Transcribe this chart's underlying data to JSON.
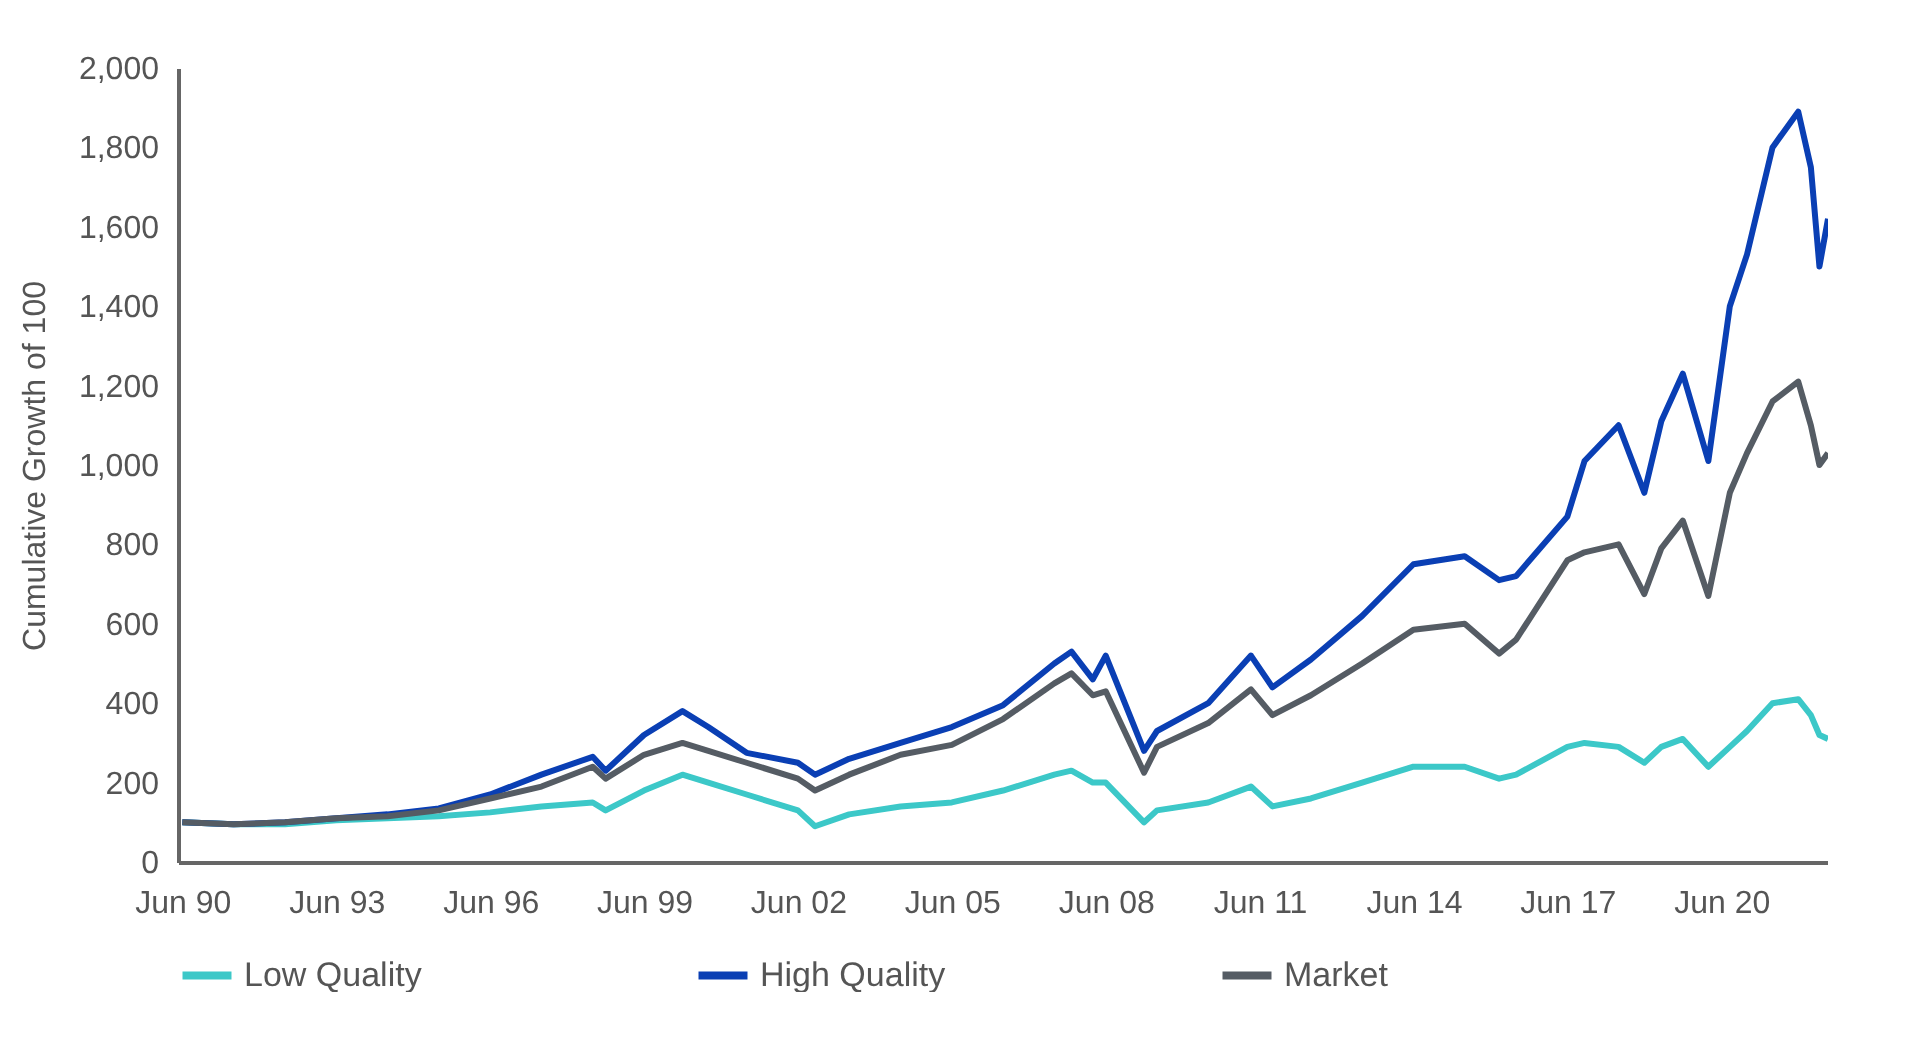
{
  "chart_data": {
    "type": "line",
    "ylabel": "Cumulative Growth of 100",
    "x": [
      "1990-06",
      "1991-06",
      "1992-06",
      "1993-06",
      "1994-06",
      "1995-06",
      "1996-06",
      "1997-06",
      "1998-06",
      "1998-09",
      "1999-06",
      "2000-03",
      "2000-09",
      "2001-06",
      "2002-06",
      "2002-10",
      "2003-06",
      "2004-06",
      "2005-06",
      "2006-06",
      "2007-06",
      "2007-10",
      "2008-03",
      "2008-06",
      "2009-03",
      "2009-06",
      "2010-06",
      "2011-04",
      "2011-09",
      "2012-06",
      "2013-06",
      "2014-06",
      "2015-06",
      "2016-02",
      "2016-06",
      "2017-06",
      "2017-10",
      "2018-06",
      "2018-12",
      "2019-04",
      "2019-09",
      "2020-03",
      "2020-08",
      "2020-12",
      "2021-06",
      "2021-12",
      "2022-03",
      "2022-05",
      "2022-07"
    ],
    "series": [
      {
        "name": "Low Quality",
        "color": "#3cc8c8",
        "values": [
          100,
          95,
          95,
          105,
          110,
          115,
          125,
          140,
          150,
          130,
          180,
          220,
          200,
          170,
          130,
          90,
          120,
          140,
          150,
          180,
          220,
          230,
          200,
          200,
          100,
          130,
          150,
          190,
          140,
          160,
          200,
          240,
          240,
          210,
          220,
          290,
          300,
          290,
          250,
          290,
          310,
          240,
          290,
          330,
          400,
          410,
          370,
          320,
          310
        ]
      },
      {
        "name": "High Quality",
        "color": "#0a3fb4",
        "values": [
          100,
          95,
          100,
          110,
          120,
          135,
          170,
          220,
          265,
          230,
          320,
          380,
          340,
          275,
          250,
          220,
          260,
          300,
          340,
          395,
          500,
          530,
          460,
          520,
          280,
          330,
          400,
          520,
          440,
          510,
          620,
          750,
          770,
          710,
          720,
          870,
          1010,
          1100,
          930,
          1110,
          1230,
          1010,
          1400,
          1530,
          1800,
          1890,
          1750,
          1500,
          1620
        ]
      },
      {
        "name": "Market",
        "color": "#555c64",
        "values": [
          100,
          95,
          100,
          110,
          115,
          130,
          160,
          190,
          240,
          210,
          270,
          300,
          280,
          250,
          210,
          180,
          220,
          270,
          295,
          360,
          450,
          475,
          420,
          430,
          225,
          290,
          350,
          435,
          370,
          420,
          500,
          585,
          600,
          525,
          560,
          760,
          780,
          800,
          675,
          790,
          860,
          670,
          930,
          1030,
          1160,
          1210,
          1100,
          1000,
          1030
        ]
      }
    ],
    "xlim": [
      "1990-05",
      "2022-07"
    ],
    "xticks": [
      {
        "value": "1990-06",
        "label": "Jun 90"
      },
      {
        "value": "1993-06",
        "label": "Jun 93"
      },
      {
        "value": "1996-06",
        "label": "Jun 96"
      },
      {
        "value": "1999-06",
        "label": "Jun 99"
      },
      {
        "value": "2002-06",
        "label": "Jun 02"
      },
      {
        "value": "2005-06",
        "label": "Jun 05"
      },
      {
        "value": "2008-06",
        "label": "Jun 08"
      },
      {
        "value": "2011-06",
        "label": "Jun 11"
      },
      {
        "value": "2014-06",
        "label": "Jun 14"
      },
      {
        "value": "2017-06",
        "label": "Jun 17"
      },
      {
        "value": "2020-06",
        "label": "Jun 20"
      }
    ],
    "ylim": [
      0,
      2000
    ],
    "yticks": [
      0,
      200,
      400,
      600,
      800,
      {
        "value": 1000,
        "label": "1,000"
      },
      {
        "value": 1200,
        "label": "1,200"
      },
      {
        "value": 1400,
        "label": "1,400"
      },
      {
        "value": 1600,
        "label": "1,600"
      },
      {
        "value": 1800,
        "label": "1,800"
      },
      {
        "value": 2000,
        "label": "2,000"
      }
    ],
    "grid": false,
    "legend": "bottom",
    "marker": "none",
    "line_style": "solid"
  }
}
